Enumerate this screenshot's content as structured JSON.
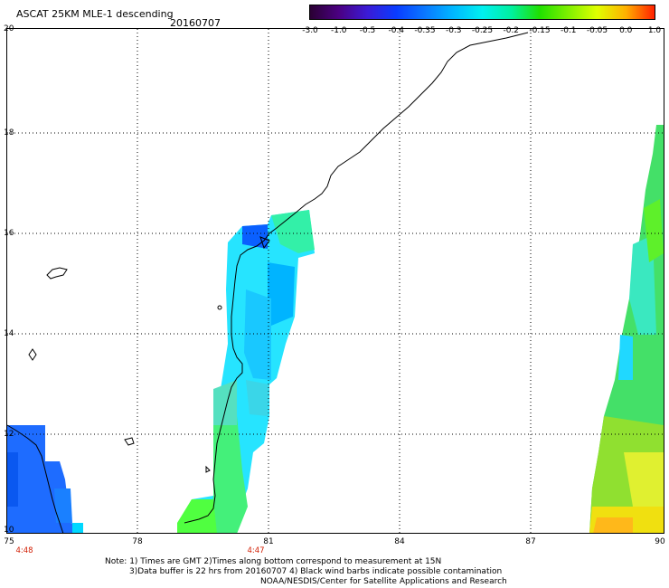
{
  "header": {
    "title": "ASCAT 25KM MLE-1 descending",
    "date": "20160707"
  },
  "colorbar": {
    "labels": [
      "-3.0",
      "-1.0",
      "-0.5",
      "-0.4",
      "-0.35",
      "-0.3",
      "-0.25",
      "-0.2",
      "-0.15",
      "-0.1",
      "-0.05",
      "0.0",
      "1.0"
    ],
    "colors": [
      "#2a0033",
      "#4b0082",
      "#3b1bd6",
      "#0a3cff",
      "#0a78ff",
      "#00b8ff",
      "#00f0f0",
      "#00f0a0",
      "#20e000",
      "#80f000",
      "#e0ff00",
      "#ffb000",
      "#ff2000"
    ]
  },
  "map": {
    "lon_labels": [
      "75",
      "78",
      "81",
      "84",
      "87",
      "90"
    ],
    "lat_labels": [
      "20",
      "18",
      "16",
      "14",
      "12",
      "10"
    ],
    "time_labels": [
      {
        "text": "4:48",
        "lon": 75.4
      },
      {
        "text": "4:47",
        "lon": 81.0
      }
    ]
  },
  "notes": [
    "Note: 1) Times are GMT 2)Times along bottom correspond to measurement at 15N",
    "3)Data buffer is 22 hrs from 20160707 4) Black wind barbs indicate possible contamination",
    "NOAA/NESDIS/Center for Satellite Applications and Research"
  ]
}
